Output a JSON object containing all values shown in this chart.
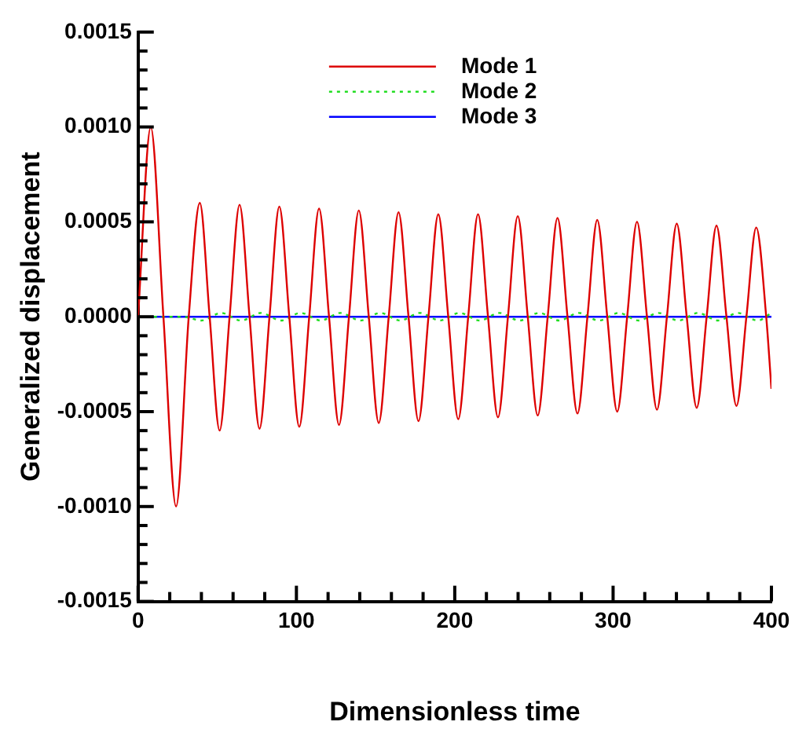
{
  "chart_data": {
    "type": "line",
    "xlabel": "Dimensionless time",
    "ylabel": "Generalized displacement",
    "xlim": [
      0,
      400
    ],
    "ylim": [
      -0.0015,
      0.0015
    ],
    "xticks": [
      0,
      {
        "value": 20,
        "label": null
      },
      {
        "value": 40,
        "label": null
      },
      {
        "value": 60,
        "label": null
      },
      {
        "value": 80,
        "label": null
      },
      100,
      {
        "value": 120,
        "label": null
      },
      {
        "value": 140,
        "label": null
      },
      {
        "value": 160,
        "label": null
      },
      {
        "value": 180,
        "label": null
      },
      200,
      {
        "value": 220,
        "label": null
      },
      {
        "value": 240,
        "label": null
      },
      {
        "value": 260,
        "label": null
      },
      {
        "value": 280,
        "label": null
      },
      300,
      {
        "value": 320,
        "label": null
      },
      {
        "value": 340,
        "label": null
      },
      {
        "value": 360,
        "label": null
      },
      {
        "value": 380,
        "label": null
      },
      400
    ],
    "yticks": [
      {
        "value": -0.0015,
        "label": "-0.0015"
      },
      {
        "value": -0.0014,
        "label": null
      },
      {
        "value": -0.0013,
        "label": null
      },
      {
        "value": -0.0012,
        "label": null
      },
      {
        "value": -0.0011,
        "label": null
      },
      {
        "value": -0.001,
        "label": "-0.0010"
      },
      {
        "value": -0.0009,
        "label": null
      },
      {
        "value": -0.0008,
        "label": null
      },
      {
        "value": -0.0007,
        "label": null
      },
      {
        "value": -0.0006,
        "label": null
      },
      {
        "value": -0.0005,
        "label": "-0.0005"
      },
      {
        "value": -0.0004,
        "label": null
      },
      {
        "value": -0.0003,
        "label": null
      },
      {
        "value": -0.0002,
        "label": null
      },
      {
        "value": -0.0001,
        "label": null
      },
      {
        "value": 0,
        "label": "0.0000"
      },
      {
        "value": 0.0001,
        "label": null
      },
      {
        "value": 0.0002,
        "label": null
      },
      {
        "value": 0.0003,
        "label": null
      },
      {
        "value": 0.0004,
        "label": null
      },
      {
        "value": 0.0005,
        "label": "0.0005"
      },
      {
        "value": 0.0006,
        "label": null
      },
      {
        "value": 0.0007,
        "label": null
      },
      {
        "value": 0.0008,
        "label": null
      },
      {
        "value": 0.0009,
        "label": null
      },
      {
        "value": 0.001,
        "label": "0.0010"
      },
      {
        "value": 0.0011,
        "label": null
      },
      {
        "value": 0.0012,
        "label": null
      },
      {
        "value": 0.0013,
        "label": null
      },
      {
        "value": 0.0014,
        "label": null
      },
      {
        "value": 0.0015,
        "label": "0.0015"
      }
    ],
    "grid": false,
    "legend": "top",
    "marker": "none",
    "series": [
      {
        "name": "Mode 1",
        "color": "#dd0000",
        "line_style": "solid",
        "x": [
          0,
          8,
          16,
          24,
          32,
          39,
          45.2,
          51.5,
          57.8,
          64.1,
          70.4,
          76.7,
          83,
          89.2,
          95.5,
          101.8,
          108.1,
          114.3,
          120.6,
          126.9,
          133.2,
          139.4,
          145.7,
          152,
          158.3,
          164.5,
          170.8,
          177.1,
          183.4,
          189.6,
          195.9,
          202.2,
          208.5,
          214.7,
          221,
          227.3,
          233.6,
          239.8,
          246.1,
          252.4,
          258.7,
          264.9,
          271.2,
          277.5,
          283.8,
          290,
          296.3,
          302.6,
          308.9,
          315.1,
          321.4,
          327.7,
          334,
          340.2,
          346.5,
          352.8,
          359.1,
          365.3,
          371.6,
          377.9,
          384.2,
          390.4,
          396.7,
          400
        ],
        "values": [
          0,
          0.001,
          0,
          -0.001,
          0,
          0.0006,
          0,
          -0.0006,
          0,
          0.00059,
          0,
          -0.00059,
          0,
          0.00058,
          0,
          -0.00058,
          0,
          0.00057,
          0,
          -0.00057,
          0,
          0.00056,
          0,
          -0.00056,
          0,
          0.00055,
          0,
          -0.00055,
          0,
          0.00054,
          0,
          -0.00054,
          0,
          0.00054,
          0,
          -0.00053,
          0,
          0.00053,
          0,
          -0.00052,
          0,
          0.00052,
          0,
          -0.00051,
          0,
          0.00051,
          0,
          -0.0005,
          0,
          0.0005,
          0,
          -0.00049,
          0,
          0.00049,
          0,
          -0.00048,
          0,
          0.00048,
          0,
          -0.00047,
          0,
          0.00047,
          0,
          -0.00038
        ]
      },
      {
        "name": "Mode 2",
        "color": "#22dd22",
        "line_style": "dotted",
        "x": [
          0,
          28,
          40,
          52.5,
          65.1,
          77.6,
          90.2,
          102.7,
          115.3,
          127.8,
          140.4,
          152.9,
          165.5,
          178,
          190.6,
          203.1,
          215.7,
          228.2,
          240.8,
          253.3,
          265.9,
          278.4,
          291,
          303.5,
          316.1,
          328.6,
          341.2,
          353.7,
          366.3,
          378.8,
          391.4,
          400
        ],
        "values": [
          0,
          0,
          -2e-05,
          2e-05,
          -2e-05,
          2e-05,
          -2e-05,
          2e-05,
          -2e-05,
          2e-05,
          -2e-05,
          2e-05,
          -2e-05,
          2e-05,
          -2e-05,
          2e-05,
          -2e-05,
          2e-05,
          -2e-05,
          2e-05,
          -2e-05,
          2e-05,
          -2e-05,
          2e-05,
          -2e-05,
          2e-05,
          -2e-05,
          2e-05,
          -2e-05,
          2e-05,
          -2e-05,
          2e-05
        ]
      },
      {
        "name": "Mode 3",
        "color": "#0000ff",
        "line_style": "solid",
        "x": [
          0,
          400
        ],
        "values": [
          0,
          0
        ]
      }
    ]
  }
}
